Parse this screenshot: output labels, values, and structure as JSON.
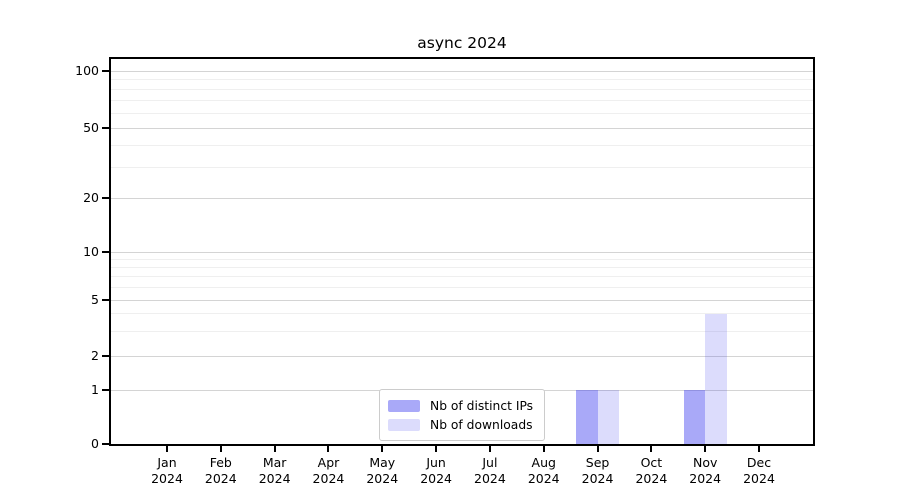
{
  "chart_data": {
    "type": "bar",
    "title": "async 2024",
    "x_categories": [
      "Jan",
      "Feb",
      "Mar",
      "Apr",
      "May",
      "Jun",
      "Jul",
      "Aug",
      "Sep",
      "Oct",
      "Nov",
      "Dec"
    ],
    "x_year": "2024",
    "series": [
      {
        "name": "Nb of distinct IPs",
        "color": "rgba(60,60,240,0.44)",
        "values": [
          0,
          0,
          0,
          0,
          0,
          0,
          0,
          0,
          1,
          0,
          1,
          0
        ]
      },
      {
        "name": "Nb of downloads",
        "color": "rgba(60,60,240,0.18)",
        "values": [
          0,
          0,
          0,
          0,
          0,
          0,
          0,
          0,
          1,
          0,
          4,
          0
        ]
      }
    ],
    "yscale": "symlog",
    "y_major_ticks": [
      0,
      1,
      2,
      5,
      10,
      20,
      50,
      100
    ],
    "y_minor_ticks": [
      3,
      4,
      6,
      7,
      8,
      9,
      30,
      40,
      60,
      70,
      80,
      90
    ],
    "ylim": [
      0,
      120
    ],
    "grid": true,
    "legend_position": "lower-center-inside",
    "colors": {
      "axis": "#000000",
      "grid_major": "#d4d4d4",
      "grid_minor": "#efefef",
      "legend_border": "#cccccc"
    }
  }
}
